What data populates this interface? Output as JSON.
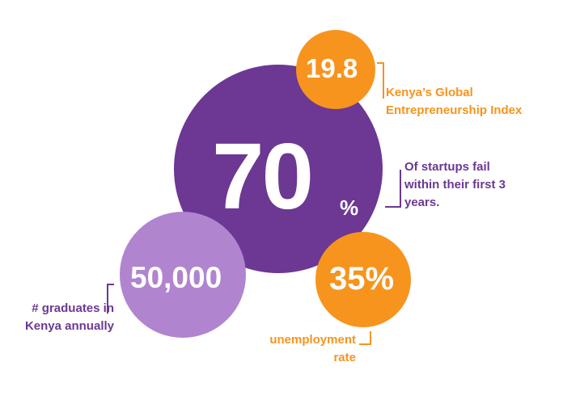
{
  "stats": {
    "main": {
      "value": "70",
      "unit": "%"
    },
    "graduates": {
      "value": "50,000"
    },
    "index": {
      "value": "19.8"
    },
    "unemployment": {
      "value": "35%"
    }
  },
  "labels": {
    "index": [
      "Kenya’s Global",
      "Entrepreneurship Index"
    ],
    "startups": [
      "Of startups fail",
      "within their first 3",
      "years."
    ],
    "graduates": [
      "# graduates in",
      "Kenya annually"
    ],
    "unemployment": [
      "unemployment",
      "rate"
    ]
  },
  "colors": {
    "purple_dark": "#6c3893",
    "purple_light": "#b084cf",
    "orange": "#f7941d",
    "white": "#ffffff"
  }
}
